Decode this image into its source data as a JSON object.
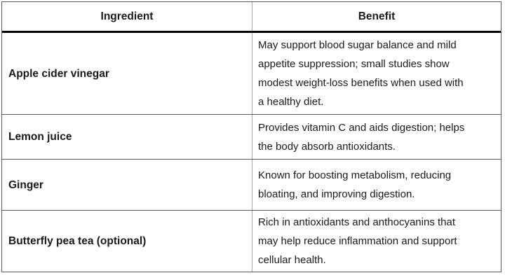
{
  "table": {
    "columns": [
      {
        "label": "Ingredient"
      },
      {
        "label": "Benefit"
      }
    ],
    "rows": [
      {
        "ingredient": "Apple cider vinegar",
        "benefit_lines": [
          "May support blood sugar balance and mild",
          "appetite suppression; small studies show",
          "modest weight-loss benefits when used with",
          "a healthy diet."
        ]
      },
      {
        "ingredient": "Lemon juice",
        "benefit_lines": [
          "Provides vitamin C and aids digestion; helps",
          "the body absorb antioxidants."
        ]
      },
      {
        "ingredient": "Ginger",
        "benefit_lines": [
          "Known for boosting metabolism, reducing",
          "bloating, and improving digestion."
        ]
      },
      {
        "ingredient": "Butterfly pea tea (optional)",
        "benefit_lines": [
          "Rich in antioxidants and anthocyanins that",
          "may help reduce inflammation and support",
          "cellular health."
        ]
      }
    ]
  },
  "colors": {
    "background": "#ffffff",
    "text": "#1a1a1a",
    "outer-border": "#595959",
    "row-divider": "#595959",
    "column-divider": "#a6a6a6",
    "header-rule": "#000000"
  }
}
